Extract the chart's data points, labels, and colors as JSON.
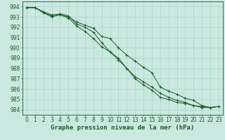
{
  "bg_color": "#cbe8e0",
  "grid_color": "#a8d5c8",
  "line_color": "#1a5c28",
  "marker_color": "#1a5c28",
  "xlabel": "Graphe pression niveau de la mer (hPa)",
  "xlabel_fontsize": 6.5,
  "tick_fontsize": 5.5,
  "xlim": [
    -0.5,
    23.5
  ],
  "ylim": [
    983.5,
    994.5
  ],
  "yticks": [
    984,
    985,
    986,
    987,
    988,
    989,
    990,
    991,
    992,
    993,
    994
  ],
  "xticks": [
    0,
    1,
    2,
    3,
    4,
    5,
    6,
    7,
    8,
    9,
    10,
    11,
    12,
    13,
    14,
    15,
    16,
    17,
    18,
    19,
    20,
    21,
    22,
    23
  ],
  "line1": [
    993.9,
    993.9,
    993.5,
    993.2,
    993.2,
    993.0,
    992.5,
    992.2,
    991.9,
    991.1,
    990.9,
    990.0,
    989.3,
    988.7,
    988.1,
    987.6,
    986.2,
    985.8,
    985.5,
    985.1,
    984.9,
    984.4,
    984.2,
    984.3
  ],
  "line2": [
    993.9,
    993.9,
    993.4,
    993.1,
    993.3,
    993.1,
    992.3,
    992.0,
    991.5,
    990.5,
    989.6,
    988.8,
    988.0,
    987.2,
    986.7,
    986.2,
    985.6,
    985.2,
    984.9,
    984.7,
    984.4,
    984.2,
    984.2,
    984.3
  ],
  "line3": [
    993.9,
    993.9,
    993.4,
    993.0,
    993.2,
    992.9,
    992.1,
    991.6,
    990.9,
    990.1,
    989.6,
    989.0,
    988.0,
    987.0,
    986.4,
    985.9,
    985.2,
    985.0,
    984.7,
    984.6,
    984.4,
    984.3,
    984.2,
    984.3
  ]
}
